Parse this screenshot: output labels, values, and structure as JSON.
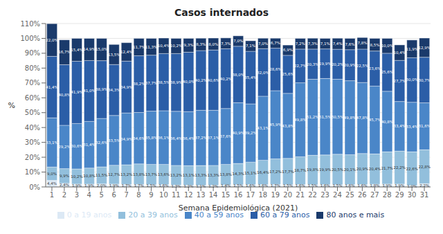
{
  "chart_data": {
    "type": "bar",
    "title": "Casos internados",
    "xlabel": "Semana Epidemiológica (2021)",
    "ylabel": "%",
    "categories": [
      "1",
      "2",
      "3",
      "4",
      "5",
      "6",
      "7",
      "8",
      "9",
      "10",
      "11",
      "12",
      "13",
      "14",
      "15",
      "16",
      "17",
      "18",
      "19",
      "20",
      "21",
      "22",
      "23",
      "24",
      "25",
      "26",
      "27",
      "28",
      "29",
      "30",
      "31"
    ],
    "stacked": true,
    "data_labels": true,
    "grid": true,
    "legend": "bottom",
    "ylim": [
      0,
      110
    ],
    "yticks": [
      {
        "value": 0,
        "label": "0%"
      },
      {
        "value": 10,
        "label": "10%"
      },
      {
        "value": 20,
        "label": "20%"
      },
      {
        "value": 30,
        "label": "30%"
      },
      {
        "value": 40,
        "label": "40%"
      },
      {
        "value": 50,
        "label": "50%"
      },
      {
        "value": 60,
        "label": "60%"
      },
      {
        "value": 70,
        "label": "70%"
      },
      {
        "value": 80,
        "label": "80%"
      },
      {
        "value": 90,
        "label": "90%"
      },
      {
        "value": 100,
        "label": "100%"
      },
      {
        "value": 110,
        "label": "110%"
      }
    ],
    "series": [
      {
        "name": "0 a 19 anos",
        "color": "#dce9f5",
        "values": [
          4.4,
          2.4,
          1.9,
          1.9,
          2.0,
          1.9,
          1.7,
          1.7,
          1.5,
          1.6,
          1.3,
          1.2,
          1.1,
          1.2,
          1.4,
          1.5,
          1.6,
          1.6,
          1.7,
          1.5,
          1.6,
          1.5,
          1.6,
          1.5,
          1.6,
          1.6,
          1.8,
          1.9,
          1.9,
          1.0,
          2.2
        ],
        "value_labels": [
          "4,4%",
          "2,4%",
          "1,9%",
          "1,9%",
          "2,0%",
          "1,9%",
          "1,7%",
          "1,7%",
          "1,5%",
          "1,6%",
          "1,3%",
          "1,2%",
          "1,1%",
          "1,2%",
          "1,4%",
          "1,5%",
          "1,6%",
          "1,6%",
          "1,7%",
          "1,5%",
          "1,6%",
          "1,5%",
          "1,6%",
          "1,5%",
          "1,6%",
          "1,6%",
          "1,8%",
          "1,9%",
          "1,9%",
          "1,0%",
          "2,2%"
        ]
      },
      {
        "name": "20 a 39 anos",
        "color": "#92bfdc",
        "values": [
          9.0,
          9.9,
          10.2,
          10.8,
          11.5,
          12.7,
          13.2,
          13.8,
          13.7,
          13.6,
          13.2,
          13.1,
          13.3,
          13.3,
          13.8,
          14.3,
          15.1,
          16.4,
          17.2,
          17.7,
          18.7,
          19.8,
          19.9,
          20.5,
          20.1,
          20.9,
          20.4,
          21.7,
          22.2,
          22.6,
          22.8
        ],
        "value_labels": [
          "9,0%",
          "9,9%",
          "10,2%",
          "10,8%",
          "11,5%",
          "12,7%",
          "13,2%",
          "13,8%",
          "13,7%",
          "13,6%",
          "13,2%",
          "13,1%",
          "13,3%",
          "13,3%",
          "13,8%",
          "14,3%",
          "15,1%",
          "16,4%",
          "17,2%",
          "17,7%",
          "18,7%",
          "19,8%",
          "19,9%",
          "20,5%",
          "20,1%",
          "20,9%",
          "20,4%",
          "21,7%",
          "22,2%",
          "22,6%",
          "22,8%"
        ]
      },
      {
        "name": "40 a 59 anos",
        "color": "#4a86c8",
        "values": [
          33.1,
          29.2,
          30.6,
          31.4,
          32.6,
          33.5,
          34.9,
          34.6,
          35.8,
          36.1,
          36.4,
          36.4,
          37.2,
          37.1,
          37.6,
          40.9,
          39.2,
          43.1,
          45.9,
          43.8,
          49.8,
          51.2,
          51.5,
          50.5,
          49.8,
          47.8,
          45.7,
          40.8,
          33.4,
          33.4,
          31.6
        ],
        "value_labels": [
          "33,1%",
          "29,2%",
          "30,6%",
          "31,4%",
          "32,6%",
          "33,5%",
          "34,9%",
          "34,6%",
          "35,8%",
          "36,1%",
          "36,4%",
          "36,4%",
          "37,2%",
          "37,1%",
          "37,6%",
          "40,9%",
          "39,2%",
          "43,1%",
          "45,9%",
          "43,8%",
          "49,8%",
          "51,2%",
          "51,5%",
          "50,5%",
          "49,8%",
          "47,8%",
          "45,7%",
          "40,8%",
          "33,4%",
          "33,4%",
          "31,6%"
        ]
      },
      {
        "name": "60 a 79 anos",
        "color": "#2b5ea7",
        "values": [
          41.4,
          40.8,
          41.9,
          41.0,
          38.9,
          34.3,
          34.9,
          38.2,
          37.7,
          38.5,
          38.9,
          40.0,
          40.2,
          40.6,
          40.2,
          38.0,
          35.4,
          32.0,
          28.6,
          25.6,
          22.7,
          20.3,
          19.9,
          20.2,
          20.9,
          22.5,
          23.6,
          25.6,
          27.7,
          30.0,
          30.7
        ],
        "value_labels": [
          "41,4%",
          "40,8%",
          "41,9%",
          "41,0%",
          "38,9%",
          "34,3%",
          "34,9%",
          "38,2%",
          "37,7%",
          "38,5%",
          "38,9%",
          "40,0%",
          "40,2%",
          "40,6%",
          "40,2%",
          "38,0%",
          "35,4%",
          "32,0%",
          "28,6%",
          "25,6%",
          "22,7%",
          "20,3%",
          "19,9%",
          "20,2%",
          "20,9%",
          "22,5%",
          "23,6%",
          "25,6%",
          "27,7%",
          "30,0%",
          "30,7%"
        ]
      },
      {
        "name": "80 anos e mais",
        "color": "#1a3a6b",
        "values": [
          22.0,
          16.7,
          15.4,
          14.9,
          15.0,
          13.5,
          12.4,
          11.7,
          11.3,
          10.4,
          10.2,
          9.3,
          8.3,
          8.0,
          7.3,
          7.0,
          7.1,
          7.0,
          6.7,
          6.9,
          7.2,
          7.3,
          7.1,
          7.4,
          7.6,
          7.8,
          8.5,
          10.0,
          10.4,
          11.9,
          12.9
        ],
        "value_labels": [
          "22,0%",
          "16,7%",
          "15,4%",
          "14,9%",
          "15,0%",
          "13,5%",
          "12,4%",
          "11,7%",
          "11,3%",
          "10,4%",
          "10,2%",
          "9,3%",
          "8,3%",
          "8,0%",
          "7,3%",
          "7,0%",
          "7,1%",
          "7,0%",
          "6,7%",
          "6,9%",
          "7,2%",
          "7,3%",
          "7,1%",
          "7,4%",
          "7,6%",
          "7,8%",
          "8,5%",
          "10,0%",
          "10,4%",
          "11,9%",
          "12,9%"
        ]
      }
    ]
  }
}
